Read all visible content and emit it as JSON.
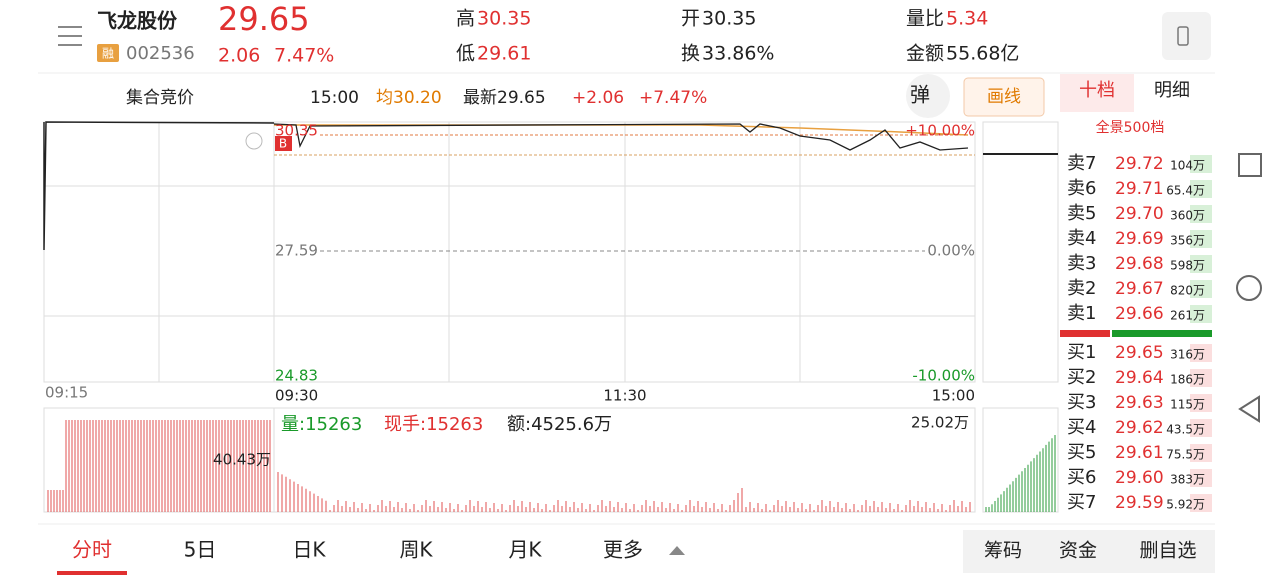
{
  "header": {
    "name": "飞龙股份",
    "badge": "融",
    "code": "002536",
    "price": "29.65",
    "change": "2.06",
    "change_pct": "7.47%",
    "stats": [
      {
        "label": "高",
        "value": "30.35"
      },
      {
        "label": "低",
        "value": "29.61"
      },
      {
        "label": "开",
        "value": "30.35"
      },
      {
        "label": "换",
        "value": "33.86%"
      },
      {
        "label": "量比",
        "value": "5.34"
      },
      {
        "label": "金额",
        "value": "55.68亿"
      }
    ]
  },
  "toolbar": {
    "auction": "集合竞价",
    "time": "15:00",
    "avg": "均30.20",
    "latest": "最新29.65",
    "change": "+2.06",
    "change_pct": "+7.47%",
    "bounce": "弹",
    "draw": "画线"
  },
  "side_tabs": [
    "十档",
    "明细"
  ],
  "chart": {
    "price_high": "30.35",
    "price_mid": "27.59",
    "price_low": "24.83",
    "pct_high": "+10.00%",
    "pct_mid": "0.00%",
    "pct_low": "-10.00%",
    "b_marker": "B",
    "times": [
      "09:15",
      "09:30",
      "11:30",
      "15:00"
    ],
    "volume": "量:15263",
    "hand": "现手:15263",
    "amount": "额:4525.6万",
    "vol_max": "25.02万",
    "auction_vol": "40.43万"
  },
  "orderbook": {
    "title": "全景500档",
    "sell": [
      {
        "label": "卖7",
        "price": "29.72",
        "volume": "104万"
      },
      {
        "label": "卖6",
        "price": "29.71",
        "volume": "65.4万"
      },
      {
        "label": "卖5",
        "price": "29.70",
        "volume": "360万"
      },
      {
        "label": "卖4",
        "price": "29.69",
        "volume": "356万"
      },
      {
        "label": "卖3",
        "price": "29.68",
        "volume": "598万"
      },
      {
        "label": "卖2",
        "price": "29.67",
        "volume": "820万"
      },
      {
        "label": "卖1",
        "price": "29.66",
        "volume": "261万"
      }
    ],
    "buy": [
      {
        "label": "买1",
        "price": "29.65",
        "volume": "316万"
      },
      {
        "label": "买2",
        "price": "29.64",
        "volume": "186万"
      },
      {
        "label": "买3",
        "price": "29.63",
        "volume": "115万"
      },
      {
        "label": "买4",
        "price": "29.62",
        "volume": "43.5万"
      },
      {
        "label": "买5",
        "price": "29.61",
        "volume": "75.5万"
      },
      {
        "label": "买6",
        "price": "29.60",
        "volume": "383万"
      },
      {
        "label": "买7",
        "price": "29.59",
        "volume": "5.92万"
      }
    ]
  },
  "tabs": [
    "分时",
    "5日",
    "日K",
    "周K",
    "月K",
    "更多"
  ],
  "buttons": [
    "筹码",
    "资金",
    "删自选"
  ]
}
